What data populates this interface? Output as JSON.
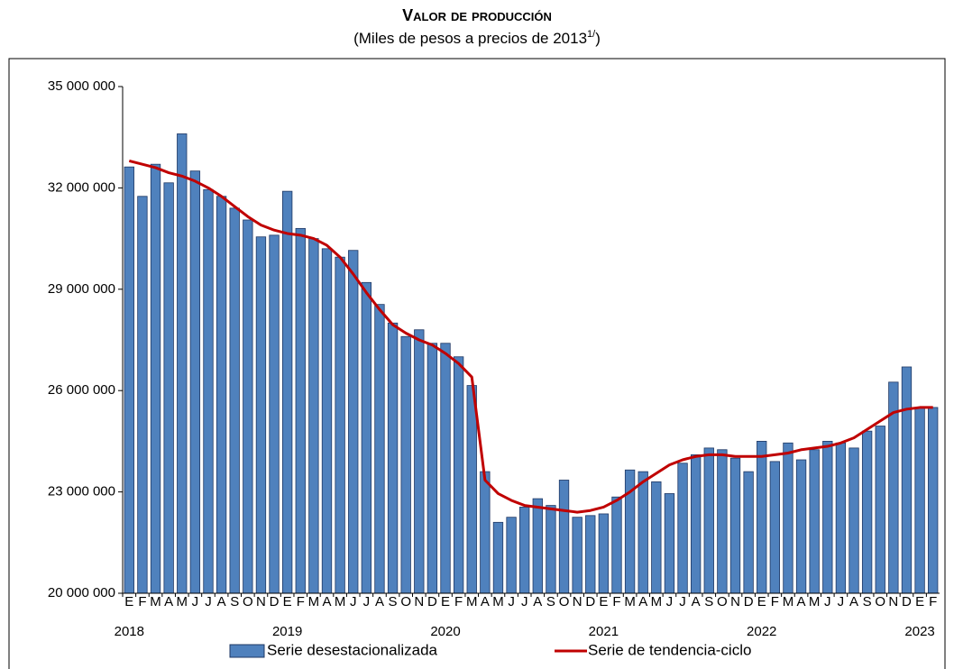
{
  "chart_data": {
    "type": "bar_line",
    "title": "Valor de producción",
    "subtitle": "(Miles de pesos a precios de 2013",
    "subtitle_note": "1/",
    "subtitle_end": ")",
    "groups": [
      {
        "name": "2018",
        "categories": [
          "E",
          "F",
          "M",
          "A",
          "M",
          "J",
          "J",
          "A",
          "S",
          "O",
          "N",
          "D"
        ]
      },
      {
        "name": "2019",
        "categories": [
          "E",
          "F",
          "M",
          "A",
          "M",
          "J",
          "J",
          "A",
          "S",
          "O",
          "N",
          "D"
        ]
      },
      {
        "name": "2020",
        "categories": [
          "E",
          "F",
          "M",
          "A",
          "M",
          "J",
          "J",
          "A",
          "S",
          "O",
          "N",
          "D"
        ]
      },
      {
        "name": "2021",
        "categories": [
          "E",
          "F",
          "M",
          "A",
          "M",
          "J",
          "J",
          "A",
          "S",
          "O",
          "N",
          "D"
        ]
      },
      {
        "name": "2022",
        "categories": [
          "E",
          "F",
          "M",
          "A",
          "M",
          "J",
          "J",
          "A",
          "S",
          "O",
          "N",
          "D"
        ]
      },
      {
        "name": "2023",
        "categories": [
          "E",
          "F"
        ]
      }
    ],
    "series": [
      {
        "name": "Serie desestacionalizada",
        "type": "bar",
        "color": "#4f81bd",
        "border": "#1f3864",
        "values": [
          32620000,
          31750000,
          32700000,
          32150000,
          33600000,
          32500000,
          31950000,
          31750000,
          31400000,
          31050000,
          30550000,
          30600000,
          31900000,
          30800000,
          30500000,
          30200000,
          29950000,
          30150000,
          29200000,
          28550000,
          28000000,
          27600000,
          27800000,
          27400000,
          27400000,
          27000000,
          26150000,
          23600000,
          22100000,
          22250000,
          22550000,
          22800000,
          22600000,
          23350000,
          22250000,
          22300000,
          22350000,
          22850000,
          23650000,
          23600000,
          23300000,
          22950000,
          23850000,
          24100000,
          24300000,
          24250000,
          24000000,
          23600000,
          24500000,
          23900000,
          24450000,
          23950000,
          24250000,
          24500000,
          24450000,
          24300000,
          24800000,
          24950000,
          26250000,
          26700000,
          25500000,
          25500000
        ]
      },
      {
        "name": "Serie de tendencia-ciclo",
        "type": "line",
        "color": "#c00000",
        "values": [
          32800000,
          32700000,
          32600000,
          32450000,
          32350000,
          32200000,
          32000000,
          31750000,
          31450000,
          31150000,
          30900000,
          30750000,
          30650000,
          30600000,
          30500000,
          30300000,
          29950000,
          29450000,
          28900000,
          28400000,
          27950000,
          27700000,
          27500000,
          27350000,
          27100000,
          26800000,
          26400000,
          23350000,
          22950000,
          22750000,
          22600000,
          22550000,
          22500000,
          22450000,
          22400000,
          22450000,
          22550000,
          22750000,
          23000000,
          23300000,
          23550000,
          23800000,
          23950000,
          24050000,
          24100000,
          24100000,
          24050000,
          24050000,
          24050000,
          24100000,
          24150000,
          24250000,
          24300000,
          24350000,
          24450000,
          24600000,
          24850000,
          25100000,
          25350000,
          25450000,
          25500000,
          25500000
        ]
      }
    ],
    "ylim": [
      20000000,
      35000000
    ],
    "yticks": [
      {
        "value": 20000000,
        "label": "20 000 000"
      },
      {
        "value": 23000000,
        "label": "23 000 000"
      },
      {
        "value": 26000000,
        "label": "26 000 000"
      },
      {
        "value": 29000000,
        "label": "29 000 000"
      },
      {
        "value": 32000000,
        "label": "32 000 000"
      },
      {
        "value": 35000000,
        "label": "35 000 000"
      }
    ],
    "legend": "bottom"
  }
}
